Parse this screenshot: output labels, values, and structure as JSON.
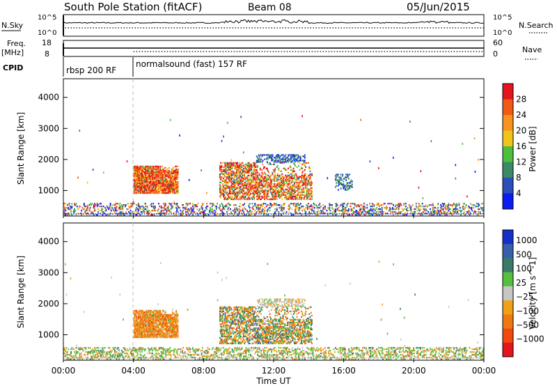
{
  "header": {
    "station": "South Pole Station (fitACF)",
    "beam": "Beam 08",
    "date": "05/Jun/2015"
  },
  "top_panels": {
    "nsky_label": "N.Sky",
    "nsky_ticks": [
      "10^5",
      "10^0"
    ],
    "nsearch_label": "N.Search",
    "nsearch_ticks": [
      "10^5",
      "10^0"
    ],
    "freq_label": "Freq.",
    "freq_unit": "[MHz]",
    "freq_ticks": [
      "18",
      "8"
    ],
    "nave_label": "Nave",
    "nave_ticks": [
      "60",
      "0"
    ],
    "cpid_label": "CPID",
    "cpid_segments": [
      {
        "label": "rbsp 200 RF",
        "start_hour": 0,
        "end_hour": 4
      },
      {
        "label": "normalsound (fast) 157 RF",
        "start_hour": 4,
        "end_hour": 24
      }
    ]
  },
  "chart_data": [
    {
      "type": "heatmap",
      "name": "power-panel",
      "xlabel": "",
      "ylabel": "Slant Range [km]",
      "x_ticks": [
        "00:00",
        "04:00",
        "08:00",
        "12:00",
        "16:00",
        "20:00",
        "00:00"
      ],
      "xlim_hours": [
        0,
        24
      ],
      "y_ticks": [
        "1000",
        "2000",
        "3000",
        "4000"
      ],
      "ylim_km": [
        180,
        4600
      ],
      "colorbar": {
        "label": "Power [dB]",
        "tick_labels": [
          "4",
          "8",
          "12",
          "16",
          "20",
          "24",
          "28"
        ],
        "range": [
          0,
          30
        ],
        "colors": [
          "#0a1cf0",
          "#2a4fb8",
          "#3a8a66",
          "#4cc03c",
          "#f0c419",
          "#f7931e",
          "#f05a14",
          "#e6141e"
        ]
      },
      "regions": [
        {
          "t": [
            4.0,
            6.5
          ],
          "r": [
            900,
            1800
          ],
          "values": "mostly 20-30 dB"
        },
        {
          "t": [
            8.9,
            14.2
          ],
          "r": [
            700,
            1900
          ],
          "values": "mostly 16-30 dB"
        },
        {
          "t": [
            11.0,
            13.8
          ],
          "r": [
            1900,
            2150
          ],
          "values": "mostly 4-12 dB"
        },
        {
          "t": [
            15.5,
            16.5
          ],
          "r": [
            1000,
            1500
          ],
          "values": "mostly 4-12 dB"
        },
        {
          "t": [
            0.0,
            24.0
          ],
          "r": [
            200,
            600
          ],
          "values": "scattered ground/near-range 4-30 dB"
        }
      ]
    },
    {
      "type": "heatmap",
      "name": "velocity-panel",
      "xlabel": "Time UT",
      "ylabel": "Slant Range [km]",
      "x_ticks": [
        "00:00",
        "04:00",
        "08:00",
        "12:00",
        "16:00",
        "20:00",
        "00:00"
      ],
      "xlim_hours": [
        0,
        24
      ],
      "y_ticks": [
        "1000",
        "2000",
        "3000",
        "4000"
      ],
      "ylim_km": [
        180,
        4600
      ],
      "colorbar": {
        "label": "Velocity [m s^-1]",
        "tick_labels": [
          "1000",
          "500",
          "100",
          "25",
          "−25",
          "−100",
          "−500",
          "−1000"
        ],
        "colors": [
          "#1530c8",
          "#3a5faa",
          "#3c7a6a",
          "#55c040",
          "#c6c6c6",
          "#f0a018",
          "#f07814",
          "#f04a10",
          "#e6141e"
        ]
      },
      "regions": [
        {
          "t": [
            4.0,
            6.5
          ],
          "r": [
            900,
            1800
          ],
          "values": "mostly -100 to -500 m/s"
        },
        {
          "t": [
            8.9,
            14.2
          ],
          "r": [
            700,
            1900
          ],
          "values": "mixed -500 to 500 m/s"
        },
        {
          "t": [
            11.0,
            13.8
          ],
          "r": [
            1900,
            2150
          ],
          "values": "mostly -25 to 25 m/s"
        },
        {
          "t": [
            0.0,
            24.0
          ],
          "r": [
            200,
            600
          ],
          "values": "scattered near-range, mostly -25 to 25 m/s"
        }
      ]
    }
  ]
}
